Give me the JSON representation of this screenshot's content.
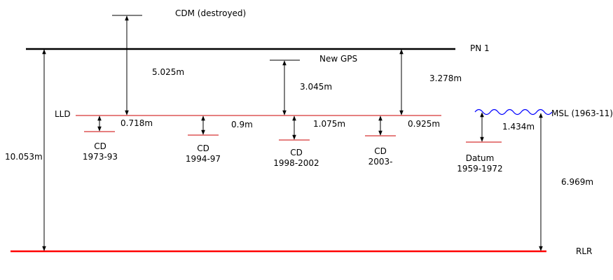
{
  "colors": {
    "line": "#000000",
    "lld": "#cc0000",
    "rlr": "#ff0000",
    "msl_wave": "#0000ff",
    "background": "#ffffff"
  },
  "levels": {
    "cdm": "CDM (destroyed)",
    "pn1": "PN 1",
    "new_gps": "New GPS",
    "lld": "LLD",
    "msl": "MSL (1963-11)",
    "rlr": "RLR"
  },
  "chart_datums": {
    "cd_1973": [
      "CD",
      "1973-93"
    ],
    "cd_1994": [
      "CD",
      "1994-97"
    ],
    "cd_1998": [
      "CD",
      "1998-2002"
    ],
    "cd_2003": [
      "CD",
      "2003-"
    ],
    "datum_1959": [
      "Datum",
      "1959-1972"
    ]
  },
  "measurements": {
    "cdm_to_lld": "5.025m",
    "pn1_to_rlr": "10.053m",
    "gps_to_lld": "3.045m",
    "pn1_to_lld": "3.278m",
    "lld_to_cd_1973": "0.718m",
    "lld_to_cd_1994": "0.9m",
    "lld_to_cd_1998": "1.075m",
    "lld_to_cd_2003": "0.925m",
    "msl_to_datum_1959": "1.434m",
    "msl_to_rlr": "6.969m"
  }
}
